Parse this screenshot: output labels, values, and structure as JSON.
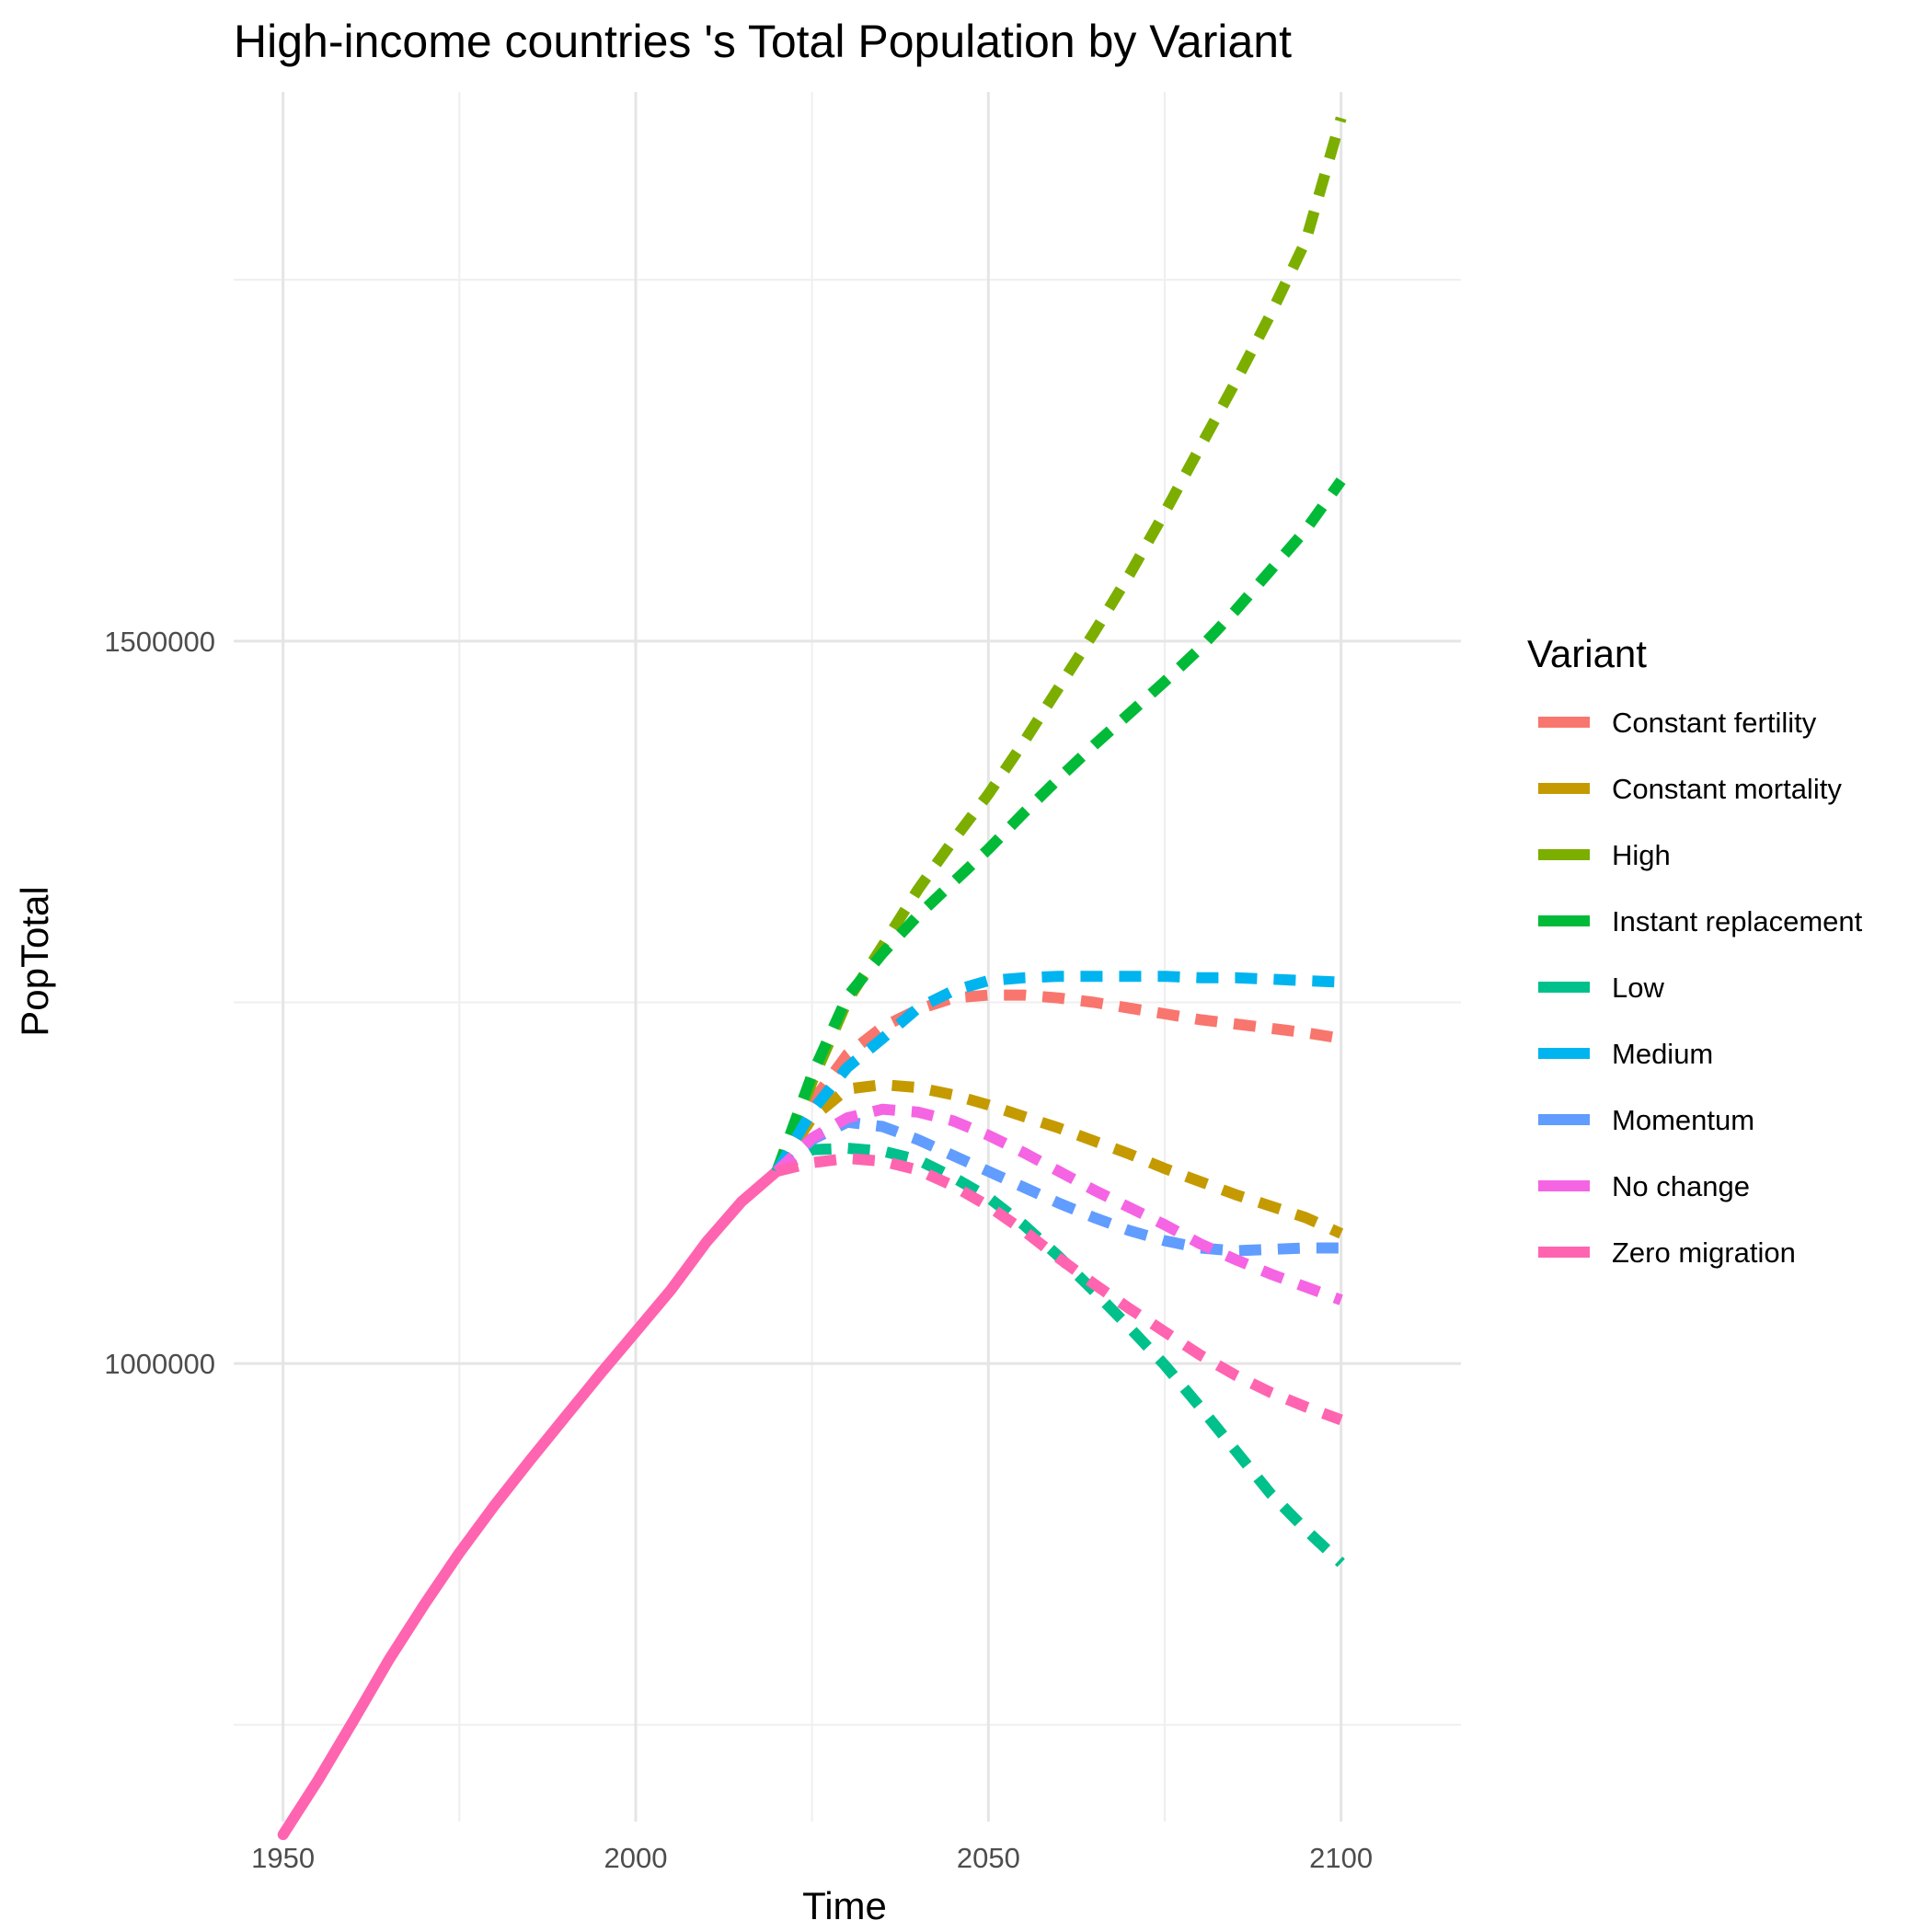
{
  "chart_data": {
    "type": "line",
    "title": "High-income countries 's Total Population by Variant",
    "xlabel": "Time",
    "ylabel": "PopTotal",
    "xlim": [
      1943,
      2117
    ],
    "ylim": [
      683000,
      1880000
    ],
    "x_ticks": [
      1950,
      2000,
      2050,
      2100
    ],
    "y_ticks": [
      1000000,
      1500000
    ],
    "y_minor": [
      750000,
      1250000,
      1750000
    ],
    "x_minor": [
      1975,
      2025,
      2075
    ],
    "grid": true,
    "legend": {
      "title": "Variant",
      "placement": "right"
    },
    "historical": {
      "name": "Zero migration",
      "x": [
        1950,
        1955,
        1960,
        1965,
        1970,
        1975,
        1980,
        1985,
        1990,
        1995,
        2000,
        2005,
        2010,
        2015,
        2020
      ],
      "y": [
        674000,
        712000,
        753000,
        795000,
        833000,
        869000,
        902000,
        933000,
        963000,
        993000,
        1022000,
        1051000,
        1084000,
        1112000,
        1133000
      ]
    },
    "series": [
      {
        "name": "Constant fertility",
        "color": "#F8766D",
        "x": [
          2020,
          2025,
          2030,
          2035,
          2040,
          2045,
          2050,
          2055,
          2060,
          2065,
          2070,
          2075,
          2080,
          2085,
          2090,
          2095,
          2100
        ],
        "y": [
          1133000,
          1181000,
          1214000,
          1233000,
          1245000,
          1253000,
          1255000,
          1255000,
          1253000,
          1250000,
          1246000,
          1242000,
          1238000,
          1235000,
          1232000,
          1229000,
          1225000
        ]
      },
      {
        "name": "Constant mortality",
        "color": "#C49A00",
        "x": [
          2020,
          2025,
          2030,
          2035,
          2040,
          2045,
          2050,
          2055,
          2060,
          2065,
          2070,
          2075,
          2080,
          2085,
          2090,
          2095,
          2100
        ],
        "y": [
          1133000,
          1170000,
          1190000,
          1193000,
          1191000,
          1186000,
          1179000,
          1171000,
          1163000,
          1154000,
          1145000,
          1135000,
          1126000,
          1117000,
          1109000,
          1101000,
          1090000
        ]
      },
      {
        "name": "High",
        "color": "#7CAE00",
        "x": [
          2020,
          2025,
          2030,
          2035,
          2040,
          2045,
          2050,
          2055,
          2060,
          2065,
          2070,
          2075,
          2080,
          2085,
          2090,
          2095,
          2100
        ],
        "y": [
          1133000,
          1195000,
          1251000,
          1289000,
          1328000,
          1362000,
          1394000,
          1430000,
          1468000,
          1506000,
          1546000,
          1589000,
          1634000,
          1679000,
          1726000,
          1777000,
          1862000
        ]
      },
      {
        "name": "Instant replacement",
        "color": "#00BA38",
        "x": [
          2020,
          2025,
          2030,
          2035,
          2040,
          2045,
          2050,
          2055,
          2060,
          2065,
          2070,
          2075,
          2080,
          2085,
          2090,
          2095,
          2100
        ],
        "y": [
          1133000,
          1200000,
          1254000,
          1284000,
          1310000,
          1333000,
          1356000,
          1381000,
          1405000,
          1428000,
          1450000,
          1472000,
          1495000,
          1521000,
          1549000,
          1577000,
          1611000
        ]
      },
      {
        "name": "Low",
        "color": "#00C08B",
        "x": [
          2020,
          2025,
          2030,
          2035,
          2040,
          2045,
          2050,
          2055,
          2060,
          2065,
          2070,
          2075,
          2080,
          2085,
          2090,
          2095,
          2100
        ],
        "y": [
          1133000,
          1148000,
          1149000,
          1147000,
          1141000,
          1129000,
          1115000,
          1096000,
          1074000,
          1050000,
          1025000,
          999000,
          970000,
          940000,
          910000,
          885000,
          862000
        ]
      },
      {
        "name": "Medium",
        "color": "#00B4EF",
        "x": [
          2020,
          2025,
          2030,
          2035,
          2040,
          2045,
          2050,
          2055,
          2060,
          2065,
          2070,
          2075,
          2080,
          2085,
          2090,
          2095,
          2100
        ],
        "y": [
          1133000,
          1175000,
          1205000,
          1225000,
          1246000,
          1258000,
          1265000,
          1267000,
          1268000,
          1268000,
          1268000,
          1268000,
          1267000,
          1267000,
          1266000,
          1265000,
          1264000
        ]
      },
      {
        "name": "Momentum",
        "color": "#619CFF",
        "x": [
          2020,
          2025,
          2030,
          2035,
          2040,
          2045,
          2050,
          2055,
          2060,
          2065,
          2070,
          2075,
          2080,
          2085,
          2090,
          2095,
          2100
        ],
        "y": [
          1133000,
          1155000,
          1167000,
          1164000,
          1155000,
          1144000,
          1133000,
          1122000,
          1111000,
          1101000,
          1092000,
          1085000,
          1080000,
          1078000,
          1079000,
          1080000,
          1080000
        ]
      },
      {
        "name": "No change",
        "color": "#F564E3",
        "x": [
          2020,
          2025,
          2030,
          2035,
          2040,
          2045,
          2050,
          2055,
          2060,
          2065,
          2070,
          2075,
          2080,
          2085,
          2090,
          2095,
          2100
        ],
        "y": [
          1133000,
          1156000,
          1170000,
          1176000,
          1174000,
          1168000,
          1158000,
          1146000,
          1133000,
          1120000,
          1108000,
          1096000,
          1083000,
          1072000,
          1062000,
          1053000,
          1044000
        ]
      },
      {
        "name": "Zero migration",
        "color": "#FF64B0",
        "x": [
          2020,
          2025,
          2030,
          2035,
          2040,
          2045,
          2050,
          2055,
          2060,
          2065,
          2070,
          2075,
          2080,
          2085,
          2090,
          2095,
          2100
        ],
        "y": [
          1133000,
          1139000,
          1142000,
          1140000,
          1134000,
          1123000,
          1109000,
          1092000,
          1073000,
          1055000,
          1038000,
          1022000,
          1006000,
          992000,
          980000,
          970000,
          961000
        ]
      }
    ]
  }
}
